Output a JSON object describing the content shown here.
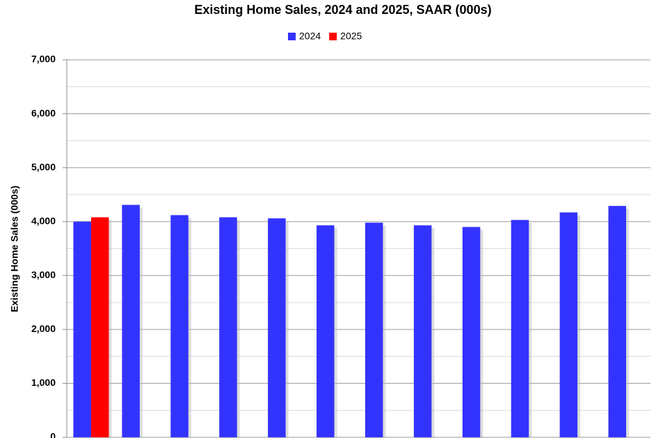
{
  "chart_data": {
    "type": "bar",
    "title": "Existing Home Sales,  2024 and 2025, SAAR (000s)",
    "y_label": "Existing Home Sales (000s)",
    "categories": [
      null,
      null,
      null,
      null,
      null,
      null,
      null,
      null,
      null,
      null,
      null,
      null
    ],
    "series": [
      {
        "name": "2024",
        "color": "#3333ff",
        "values": [
          4000,
          4310,
          4120,
          4080,
          4060,
          3930,
          3980,
          3930,
          3900,
          4030,
          4170,
          4290
        ]
      },
      {
        "name": "2025",
        "color": "#ff0000",
        "values": [
          4080,
          null,
          null,
          null,
          null,
          null,
          null,
          null,
          null,
          null,
          null,
          null
        ]
      }
    ],
    "ylim": [
      0,
      7000
    ],
    "yticks": [
      {
        "value": 0,
        "label": "0"
      },
      {
        "value": 1000,
        "label": "1,000"
      },
      {
        "value": 2000,
        "label": "2,000"
      },
      {
        "value": 3000,
        "label": "3,000"
      },
      {
        "value": 4000,
        "label": "4,000"
      },
      {
        "value": 5000,
        "label": "5,000"
      },
      {
        "value": 6000,
        "label": "6,000"
      },
      {
        "value": 7000,
        "label": "7,000"
      }
    ],
    "minor_yticks": [
      500,
      1500,
      2500,
      3500,
      4500,
      5500,
      6500
    ],
    "grid": true,
    "legend": "top"
  }
}
